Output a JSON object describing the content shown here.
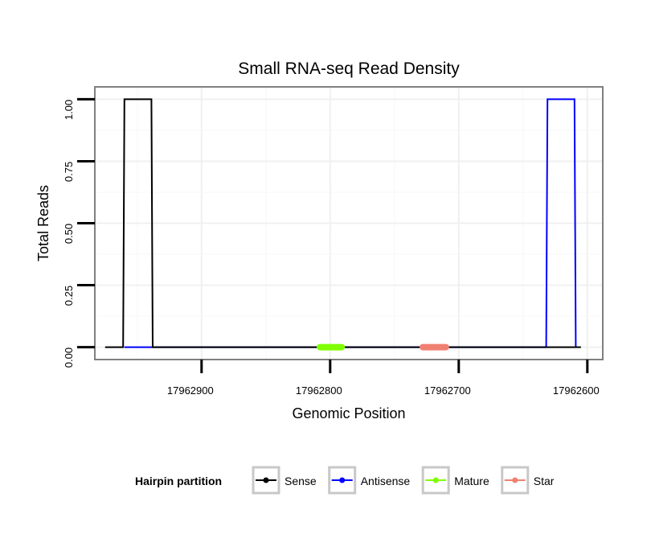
{
  "chart_data": {
    "type": "line",
    "title": "Small RNA-seq Read Density",
    "xlabel": "Genomic Position",
    "ylabel": "Total Reads",
    "xlim": [
      17962983,
      17962588
    ],
    "x_reversed": true,
    "ylim": [
      -0.05,
      1.05
    ],
    "x_ticks": [
      17962900,
      17962800,
      17962700,
      17962600
    ],
    "x_tick_labels": [
      "17962900",
      "17962800",
      "17962700",
      "17962600"
    ],
    "y_ticks": [
      0,
      0.25,
      0.5,
      0.75,
      1.0
    ],
    "y_tick_labels": [
      "0.00",
      "0.25",
      "0.50",
      "0.75",
      "1.00"
    ],
    "grid": true,
    "legend": {
      "title": "Hairpin partition",
      "position": "bottom",
      "entries": [
        "Sense",
        "Antisense",
        "Mature",
        "Star"
      ]
    },
    "series": [
      {
        "name": "Sense",
        "color": "#000000",
        "x": [
          17962975,
          17962961,
          17962960,
          17962939,
          17962938,
          17962605
        ],
        "y": [
          0,
          0,
          1,
          1,
          0,
          0
        ]
      },
      {
        "name": "Antisense",
        "color": "#0000ff",
        "x": [
          17962960,
          17962938,
          17962632,
          17962631,
          17962610,
          17962609
        ],
        "y": [
          0,
          0,
          0,
          1,
          1,
          0
        ]
      },
      {
        "name": "Mature",
        "color": "#7fff00",
        "x": [
          17962808,
          17962791
        ],
        "y": [
          0,
          0
        ]
      },
      {
        "name": "Star",
        "color": "#f08070",
        "x": [
          17962728,
          17962710
        ],
        "y": [
          0,
          0
        ]
      }
    ]
  }
}
